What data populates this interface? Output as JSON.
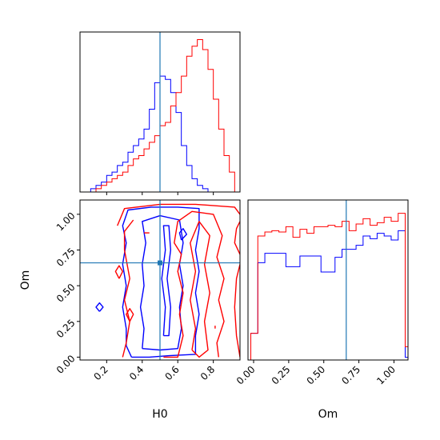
{
  "chart_data": {
    "type": "corner",
    "title": "",
    "parameters": [
      "H0",
      "Om"
    ],
    "truths": {
      "H0": 0.5,
      "Om": 0.66
    },
    "truth_color": "#1f77b4",
    "panels": [
      {
        "id": "H0-marginal",
        "type": "histogram",
        "xlim": [
          0.05,
          0.95
        ],
        "x_ticks": [
          0.2,
          0.4,
          0.6,
          0.8
        ],
        "bin_width": 0.03,
        "series": [
          {
            "color": "#0000ff",
            "bin_start": 0.11,
            "counts": [
              1,
              2,
              3,
              5,
              6,
              8,
              9,
              12,
              14,
              16,
              19,
              25,
              33,
              35,
              34,
              30,
              24,
              14,
              8,
              4,
              2,
              1
            ]
          },
          {
            "color": "#ff0000",
            "bin_start": 0.14,
            "counts": [
              1,
              2,
              3,
              4,
              5,
              6,
              8,
              10,
              11,
              13,
              15,
              17,
              20,
              21,
              26,
              30,
              35,
              41,
              44,
              46,
              43,
              37,
              28,
              19,
              11,
              6
            ]
          }
        ]
      },
      {
        "id": "Om-marginal",
        "type": "histogram",
        "xlim": [
          -0.04,
          1.1
        ],
        "x_ticks": [
          0.0,
          0.25,
          0.5,
          0.75,
          1.0
        ],
        "x_tick_labels": [
          "0.00",
          "0.25",
          "0.50",
          "0.75",
          "1.00"
        ],
        "bin_width": 0.05,
        "ylim": [
          0,
          1.2
        ],
        "series": [
          {
            "color": "#0000ff",
            "bin_start": -0.02,
            "counts": [
              0.2,
              0.73,
              0.8,
              0.8,
              0.8,
              0.7,
              0.7,
              0.78,
              0.78,
              0.78,
              0.66,
              0.66,
              0.77,
              0.83,
              0.83,
              0.86,
              0.93,
              0.91,
              0.95,
              0.93,
              0.9,
              0.97,
              0.02,
              0.01
            ]
          },
          {
            "color": "#ff0000",
            "bin_start": -0.02,
            "counts": [
              0.2,
              0.93,
              0.96,
              0.97,
              0.96,
              1.0,
              0.92,
              0.98,
              0.95,
              1.0,
              1.0,
              1.01,
              1.0,
              1.04,
              0.97,
              1.02,
              1.06,
              1.01,
              1.03,
              1.07,
              1.04,
              1.1,
              0.1,
              0.05
            ]
          }
        ]
      },
      {
        "id": "H0-Om-joint",
        "type": "contour",
        "xlim": [
          0.05,
          0.95
        ],
        "ylim": [
          -0.02,
          1.1
        ],
        "x_ticks": [
          0.2,
          0.4,
          0.6,
          0.8
        ],
        "y_ticks": [
          0.0,
          0.25,
          0.5,
          0.75,
          1.0
        ],
        "y_tick_labels": [
          "0.00",
          "0.25",
          "0.50",
          "0.75",
          "1.00"
        ],
        "xlabel": "H0",
        "ylabel": "Om",
        "series": [
          {
            "color": "#0000ff",
            "contours": [
              [
                [
                  0.34,
                  0.0
                ],
                [
                  0.31,
                  0.08
                ],
                [
                  0.31,
                  0.2
                ],
                [
                  0.29,
                  0.35
                ],
                [
                  0.31,
                  0.5
                ],
                [
                  0.29,
                  0.65
                ],
                [
                  0.31,
                  0.8
                ],
                [
                  0.29,
                  0.92
                ],
                [
                  0.32,
                  1.03
                ],
                [
                  0.45,
                  1.05
                ],
                [
                  0.6,
                  1.05
                ],
                [
                  0.72,
                  1.04
                ],
                [
                  0.72,
                  0.9
                ],
                [
                  0.7,
                  0.75
                ],
                [
                  0.72,
                  0.6
                ],
                [
                  0.7,
                  0.45
                ],
                [
                  0.72,
                  0.3
                ],
                [
                  0.7,
                  0.15
                ],
                [
                  0.7,
                  0.02
                ],
                [
                  0.55,
                  0.01
                ],
                [
                  0.44,
                  0.0
                ],
                [
                  0.34,
                  0.0
                ]
              ],
              [
                [
                  0.4,
                  0.06
                ],
                [
                  0.41,
                  0.2
                ],
                [
                  0.39,
                  0.35
                ],
                [
                  0.41,
                  0.5
                ],
                [
                  0.4,
                  0.65
                ],
                [
                  0.42,
                  0.8
                ],
                [
                  0.4,
                  0.95
                ],
                [
                  0.5,
                  0.99
                ],
                [
                  0.61,
                  0.96
                ],
                [
                  0.63,
                  0.8
                ],
                [
                  0.61,
                  0.65
                ],
                [
                  0.63,
                  0.5
                ],
                [
                  0.61,
                  0.35
                ],
                [
                  0.62,
                  0.2
                ],
                [
                  0.6,
                  0.06
                ],
                [
                  0.5,
                  0.05
                ],
                [
                  0.4,
                  0.06
                ]
              ],
              [
                [
                  0.52,
                  0.15
                ],
                [
                  0.53,
                  0.35
                ],
                [
                  0.51,
                  0.55
                ],
                [
                  0.53,
                  0.75
                ],
                [
                  0.52,
                  0.92
                ],
                [
                  0.55,
                  0.92
                ],
                [
                  0.56,
                  0.75
                ],
                [
                  0.54,
                  0.55
                ],
                [
                  0.56,
                  0.35
                ],
                [
                  0.55,
                  0.15
                ],
                [
                  0.52,
                  0.15
                ]
              ],
              [
                [
                  0.62,
                  0.82
                ],
                [
                  0.61,
                  0.87
                ],
                [
                  0.63,
                  0.9
                ],
                [
                  0.65,
                  0.86
                ],
                [
                  0.62,
                  0.82
                ]
              ],
              [
                [
                  0.16,
                  0.32
                ],
                [
                  0.14,
                  0.35
                ],
                [
                  0.16,
                  0.38
                ],
                [
                  0.18,
                  0.35
                ],
                [
                  0.16,
                  0.32
                ]
              ]
            ]
          },
          {
            "color": "#ff0000",
            "contours": [
              [
                [
                  0.26,
                  0.92
                ],
                [
                  0.3,
                  1.04
                ],
                [
                  0.5,
                  1.07
                ],
                [
                  0.7,
                  1.07
                ],
                [
                  0.92,
                  1.05
                ],
                [
                  0.95,
                  1.0
                ]
              ],
              [
                [
                  0.95,
                  0.72
                ],
                [
                  0.92,
                  0.8
                ],
                [
                  0.93,
                  0.9
                ],
                [
                  0.95,
                  0.95
                ]
              ],
              [
                [
                  0.95,
                  0.0
                ],
                [
                  0.93,
                  0.15
                ],
                [
                  0.92,
                  0.35
                ],
                [
                  0.93,
                  0.55
                ],
                [
                  0.95,
                  0.65
                ]
              ],
              [
                [
                  0.52,
                  0.0
                ],
                [
                  0.6,
                  0.0
                ],
                [
                  0.63,
                  0.15
                ],
                [
                  0.61,
                  0.3
                ],
                [
                  0.63,
                  0.45
                ],
                [
                  0.6,
                  0.6
                ],
                [
                  0.62,
                  0.72
                ],
                [
                  0.58,
                  0.8
                ],
                [
                  0.6,
                  0.95
                ],
                [
                  0.68,
                  1.02
                ],
                [
                  0.8,
                  1.0
                ],
                [
                  0.85,
                  0.85
                ],
                [
                  0.82,
                  0.7
                ],
                [
                  0.86,
                  0.55
                ],
                [
                  0.83,
                  0.4
                ],
                [
                  0.86,
                  0.25
                ],
                [
                  0.82,
                  0.1
                ],
                [
                  0.83,
                  0.0
                ]
              ],
              [
                [
                  0.68,
                  0.05
                ],
                [
                  0.7,
                  0.2
                ],
                [
                  0.67,
                  0.4
                ],
                [
                  0.7,
                  0.6
                ],
                [
                  0.67,
                  0.8
                ],
                [
                  0.72,
                  0.95
                ],
                [
                  0.78,
                  0.85
                ],
                [
                  0.75,
                  0.65
                ],
                [
                  0.78,
                  0.45
                ],
                [
                  0.75,
                  0.25
                ],
                [
                  0.77,
                  0.05
                ],
                [
                  0.72,
                  0.0
                ],
                [
                  0.68,
                  0.05
                ]
              ],
              [
                [
                  0.27,
                  0.55
                ],
                [
                  0.25,
                  0.6
                ],
                [
                  0.27,
                  0.64
                ],
                [
                  0.29,
                  0.6
                ],
                [
                  0.27,
                  0.55
                ]
              ],
              [
                [
                  0.33,
                  0.25
                ],
                [
                  0.31,
                  0.3
                ],
                [
                  0.33,
                  0.34
                ],
                [
                  0.35,
                  0.3
                ],
                [
                  0.33,
                  0.25
                ]
              ],
              [
                [
                  0.41,
                  0.87
                ],
                [
                  0.44,
                  0.87
                ]
              ],
              [
                [
                  0.81,
                  0.2
                ],
                [
                  0.81,
                  0.22
                ]
              ],
              [
                [
                  0.29,
                  0.0
                ],
                [
                  0.31,
                  0.1
                ],
                [
                  0.33,
                  0.25
                ],
                [
                  0.3,
                  0.4
                ],
                [
                  0.33,
                  0.55
                ],
                [
                  0.3,
                  0.75
                ],
                [
                  0.3,
                  0.88
                ],
                [
                  0.35,
                  0.96
                ]
              ]
            ]
          }
        ]
      }
    ]
  }
}
